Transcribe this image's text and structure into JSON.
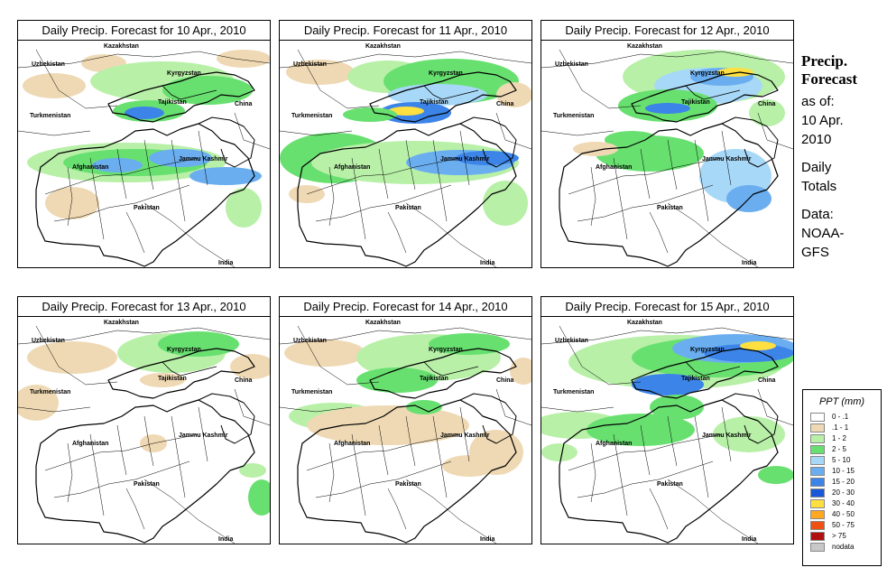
{
  "panels": [
    {
      "title": "Daily Precip. Forecast for  10 Apr., 2010",
      "scheme": "d1"
    },
    {
      "title": "Daily Precip. Forecast for  11 Apr., 2010",
      "scheme": "d2"
    },
    {
      "title": "Daily Precip. Forecast for  12 Apr., 2010",
      "scheme": "d3"
    },
    {
      "title": "Daily Precip. Forecast for  13 Apr., 2010",
      "scheme": "d4"
    },
    {
      "title": "Daily Precip. Forecast for  14 Apr., 2010",
      "scheme": "d5"
    },
    {
      "title": "Daily Precip. Forecast for  15 Apr., 2010",
      "scheme": "d6"
    }
  ],
  "map_labels": {
    "kazakhstan": "Kazakhstan",
    "uzbekistan": "Uzbekistan",
    "kyrgyzstan": "Kyrgyzstan",
    "tajikistan": "Tajikistan",
    "china": "China",
    "turkmenistan": "Turkmenistan",
    "afghanistan": "Afghanistan",
    "jammu_kashmir": "Jammu Kashmir",
    "pakistan": "Pakistan",
    "india": "India"
  },
  "sidebar": {
    "heading_line1": "Precip.",
    "heading_line2": "Forecast",
    "asof_line1": "as of:",
    "asof_line2": "10 Apr.",
    "asof_line3": "2010",
    "totals_line1": "Daily",
    "totals_line2": "Totals",
    "data_line1": "Data:",
    "data_line2": "NOAA-",
    "data_line3": "GFS"
  },
  "legend": {
    "title": "PPT (mm)",
    "items": [
      {
        "label": "0 - .1",
        "color": "#ffffff"
      },
      {
        "label": ".1 - 1",
        "color": "#efd9b4"
      },
      {
        "label": "1 - 2",
        "color": "#b8f0a8"
      },
      {
        "label": "2 - 5",
        "color": "#68e070"
      },
      {
        "label": "5 - 10",
        "color": "#a8d8f8"
      },
      {
        "label": "10 - 15",
        "color": "#6aaef0"
      },
      {
        "label": "15 - 20",
        "color": "#3c84e8"
      },
      {
        "label": "20 - 30",
        "color": "#1858d8"
      },
      {
        "label": "30 - 40",
        "color": "#ffe040"
      },
      {
        "label": "40 - 50",
        "color": "#ffa820"
      },
      {
        "label": "50 - 75",
        "color": "#f05010"
      },
      {
        "label": "> 75",
        "color": "#b01010"
      },
      {
        "label": "nodata",
        "color": "#c8c8c8"
      }
    ]
  }
}
